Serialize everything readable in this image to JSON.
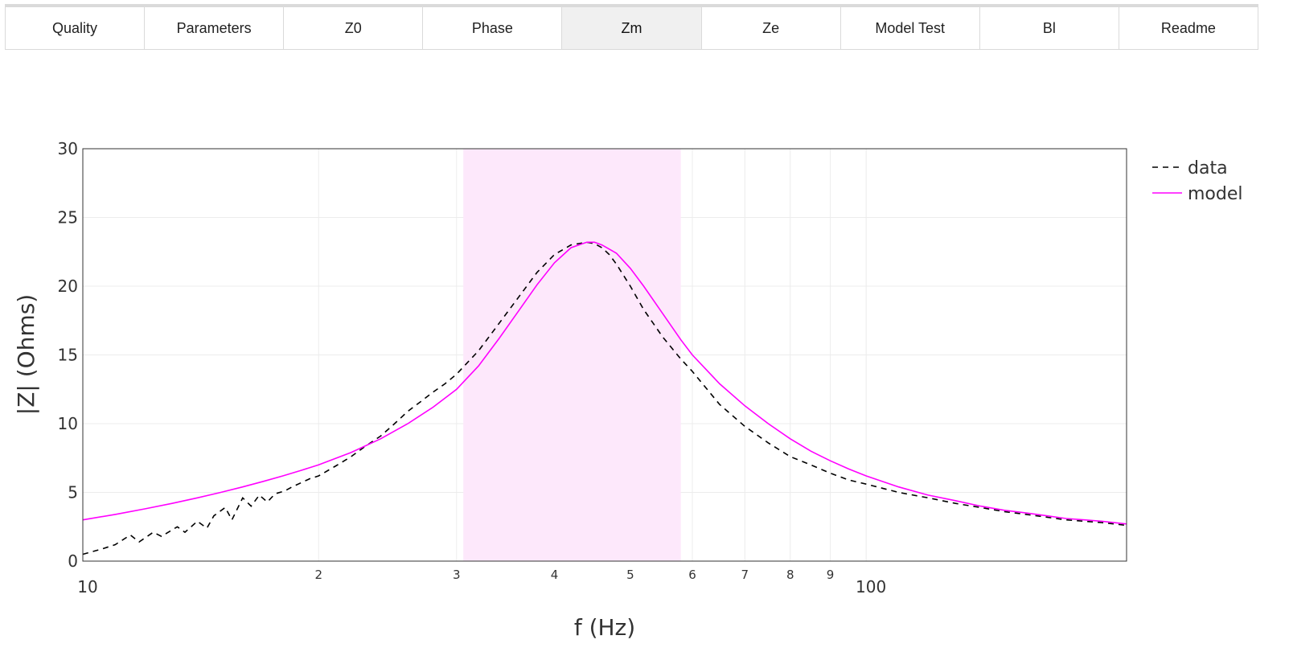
{
  "tabs": [
    {
      "label": "Quality",
      "active": false
    },
    {
      "label": "Parameters",
      "active": false
    },
    {
      "label": "Z0",
      "active": false
    },
    {
      "label": "Phase",
      "active": false
    },
    {
      "label": "Zm",
      "active": true
    },
    {
      "label": "Ze",
      "active": false
    },
    {
      "label": "Model Test",
      "active": false
    },
    {
      "label": "Bl",
      "active": false
    },
    {
      "label": "Readme",
      "active": false
    }
  ],
  "colors": {
    "model": "#ff00ff",
    "data": "#000000",
    "band": "#fde8fb",
    "grid": "#ececec"
  },
  "chart_data": {
    "type": "line",
    "xscale": "log",
    "xlim": [
      10,
      215
    ],
    "ylim": [
      0,
      30
    ],
    "xlabel": "f (Hz)",
    "ylabel": "|Z| (Ohms)",
    "grid": true,
    "legend_position": "top-right",
    "highlight_band": [
      30.6,
      58
    ],
    "x_ticks": [
      {
        "value": 10,
        "label": "10",
        "major": true
      },
      {
        "value": 20,
        "label": "2",
        "major": false
      },
      {
        "value": 30,
        "label": "3",
        "major": false
      },
      {
        "value": 40,
        "label": "4",
        "major": false
      },
      {
        "value": 50,
        "label": "5",
        "major": false
      },
      {
        "value": 60,
        "label": "6",
        "major": false
      },
      {
        "value": 70,
        "label": "7",
        "major": false
      },
      {
        "value": 80,
        "label": "8",
        "major": false
      },
      {
        "value": 90,
        "label": "9",
        "major": false
      },
      {
        "value": 100,
        "label": "100",
        "major": true
      }
    ],
    "y_ticks": [
      0,
      5,
      10,
      15,
      20,
      25,
      30
    ],
    "series": [
      {
        "name": "data",
        "style": "dash",
        "x": [
          10,
          10.6,
          11,
          11.5,
          11.8,
          12.3,
          12.6,
          13.2,
          13.5,
          14,
          14.4,
          14.7,
          15.2,
          15.5,
          16,
          16.4,
          16.8,
          17.2,
          17.6,
          18.1,
          18.5,
          19,
          19.5,
          20,
          21,
          22,
          23,
          24,
          25,
          26,
          27,
          28,
          29,
          30,
          32,
          34,
          36,
          38,
          40,
          42,
          44,
          45,
          46,
          47,
          48,
          50,
          52,
          55,
          58,
          60,
          65,
          70,
          75,
          80,
          85,
          90,
          95,
          100,
          110,
          120,
          130,
          140,
          150,
          160,
          170,
          180,
          190,
          200,
          215
        ],
        "y": [
          0.5,
          0.9,
          1.2,
          1.9,
          1.4,
          2.1,
          1.8,
          2.5,
          2.1,
          2.9,
          2.4,
          3.3,
          3.9,
          3.0,
          4.6,
          4.0,
          4.8,
          4.3,
          4.9,
          5.1,
          5.4,
          5.7,
          6.0,
          6.2,
          6.9,
          7.6,
          8.4,
          9.1,
          10.0,
          10.9,
          11.6,
          12.3,
          12.9,
          13.6,
          15.3,
          17.3,
          19.2,
          21.0,
          22.3,
          23.0,
          23.2,
          23.1,
          22.8,
          22.3,
          21.6,
          20.0,
          18.3,
          16.3,
          14.7,
          13.8,
          11.4,
          9.8,
          8.6,
          7.6,
          7.0,
          6.4,
          5.9,
          5.6,
          5.0,
          4.6,
          4.2,
          3.9,
          3.6,
          3.4,
          3.2,
          3.0,
          2.9,
          2.8,
          2.6
        ]
      },
      {
        "name": "model",
        "style": "solid",
        "x": [
          10,
          11,
          12,
          13,
          14,
          15,
          16,
          17,
          18,
          19,
          20,
          22,
          24,
          26,
          28,
          30,
          32,
          34,
          36,
          38,
          40,
          42,
          44,
          45,
          46,
          48,
          50,
          52,
          55,
          58,
          60,
          65,
          70,
          75,
          80,
          85,
          90,
          95,
          100,
          110,
          120,
          130,
          140,
          150,
          160,
          170,
          180,
          190,
          200,
          215
        ],
        "y": [
          3.0,
          3.4,
          3.8,
          4.2,
          4.6,
          5.0,
          5.4,
          5.8,
          6.2,
          6.6,
          7.0,
          7.9,
          8.9,
          10.0,
          11.2,
          12.5,
          14.2,
          16.2,
          18.2,
          20.1,
          21.7,
          22.8,
          23.2,
          23.2,
          23.0,
          22.4,
          21.3,
          20.0,
          18.0,
          16.1,
          15.0,
          12.9,
          11.3,
          10.0,
          8.9,
          8.0,
          7.3,
          6.7,
          6.2,
          5.4,
          4.8,
          4.4,
          4.0,
          3.7,
          3.5,
          3.3,
          3.1,
          3.0,
          2.9,
          2.7
        ]
      }
    ]
  }
}
